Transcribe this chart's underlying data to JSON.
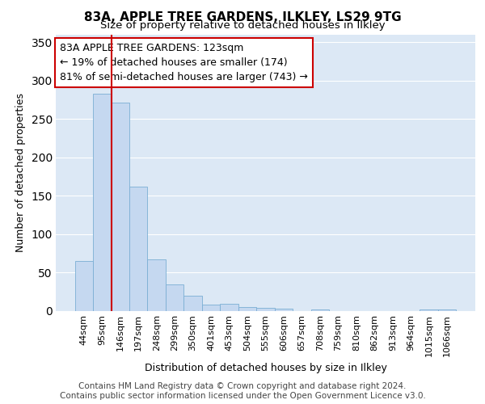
{
  "title1": "83A, APPLE TREE GARDENS, ILKLEY, LS29 9TG",
  "title2": "Size of property relative to detached houses in Ilkley",
  "xlabel": "Distribution of detached houses by size in Ilkley",
  "ylabel": "Number of detached properties",
  "categories": [
    "44sqm",
    "95sqm",
    "146sqm",
    "197sqm",
    "248sqm",
    "299sqm",
    "350sqm",
    "401sqm",
    "453sqm",
    "504sqm",
    "555sqm",
    "606sqm",
    "657sqm",
    "708sqm",
    "759sqm",
    "810sqm",
    "862sqm",
    "913sqm",
    "964sqm",
    "1015sqm",
    "1066sqm"
  ],
  "values": [
    65,
    283,
    271,
    162,
    67,
    35,
    20,
    8,
    9,
    5,
    4,
    3,
    0,
    2,
    0,
    0,
    0,
    0,
    0,
    2,
    2
  ],
  "bar_color": "#c5d8f0",
  "bar_edge_color": "#7bafd4",
  "vline_color": "#cc0000",
  "annotation_text": "83A APPLE TREE GARDENS: 123sqm\n← 19% of detached houses are smaller (174)\n81% of semi-detached houses are larger (743) →",
  "annotation_box_color": "#ffffff",
  "annotation_box_edge_color": "#cc0000",
  "ylim": [
    0,
    360
  ],
  "yticks": [
    0,
    50,
    100,
    150,
    200,
    250,
    300,
    350
  ],
  "footer": "Contains HM Land Registry data © Crown copyright and database right 2024.\nContains public sector information licensed under the Open Government Licence v3.0.",
  "fig_bg_color": "#ffffff",
  "plot_bg_color": "#dce8f5",
  "grid_color": "#ffffff",
  "title1_fontsize": 11,
  "title2_fontsize": 9.5,
  "xlabel_fontsize": 9,
  "ylabel_fontsize": 9,
  "tick_fontsize": 8,
  "annotation_fontsize": 9,
  "footer_fontsize": 7.5
}
